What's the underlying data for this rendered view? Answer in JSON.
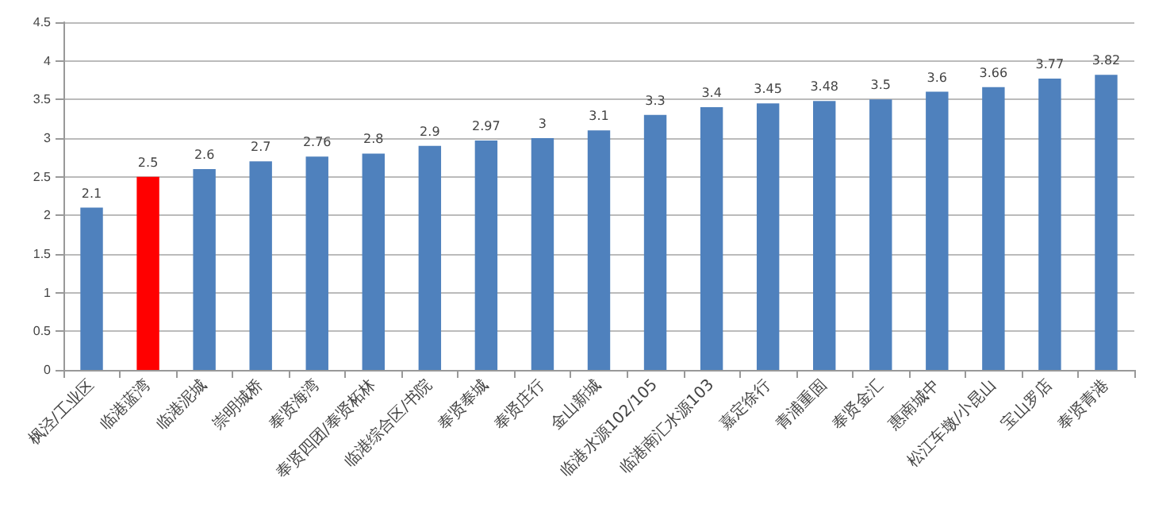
{
  "chart_data": {
    "type": "bar",
    "categories": [
      "枫泾/工业区",
      "临港蓝湾",
      "临港泥城",
      "崇明城桥",
      "奉贤海湾",
      "奉贤四团/奉贤柘林",
      "临港综合区/书院",
      "奉贤奉城",
      "奉贤庄行",
      "金山新城",
      "临港水源102/105",
      "临港南汇水源103",
      "嘉定徐行",
      "青浦重固",
      "奉贤金汇",
      "惠南城中",
      "松江车墩/小昆山",
      "宝山罗店",
      "奉贤青港"
    ],
    "values": [
      2.1,
      2.5,
      2.6,
      2.7,
      2.76,
      2.8,
      2.9,
      2.97,
      3,
      3.1,
      3.3,
      3.4,
      3.45,
      3.48,
      3.5,
      3.6,
      3.66,
      3.77,
      3.82
    ],
    "colors": [
      "#4f81bd",
      "#ff0000",
      "#4f81bd",
      "#4f81bd",
      "#4f81bd",
      "#4f81bd",
      "#4f81bd",
      "#4f81bd",
      "#4f81bd",
      "#4f81bd",
      "#4f81bd",
      "#4f81bd",
      "#4f81bd",
      "#4f81bd",
      "#4f81bd",
      "#4f81bd",
      "#4f81bd",
      "#4f81bd",
      "#4f81bd"
    ],
    "ylim": [
      0,
      4.5
    ],
    "yticks": [
      0,
      0.5,
      1,
      1.5,
      2,
      2.5,
      3,
      3.5,
      4,
      4.5
    ],
    "grid": "y",
    "data_labels": true
  }
}
